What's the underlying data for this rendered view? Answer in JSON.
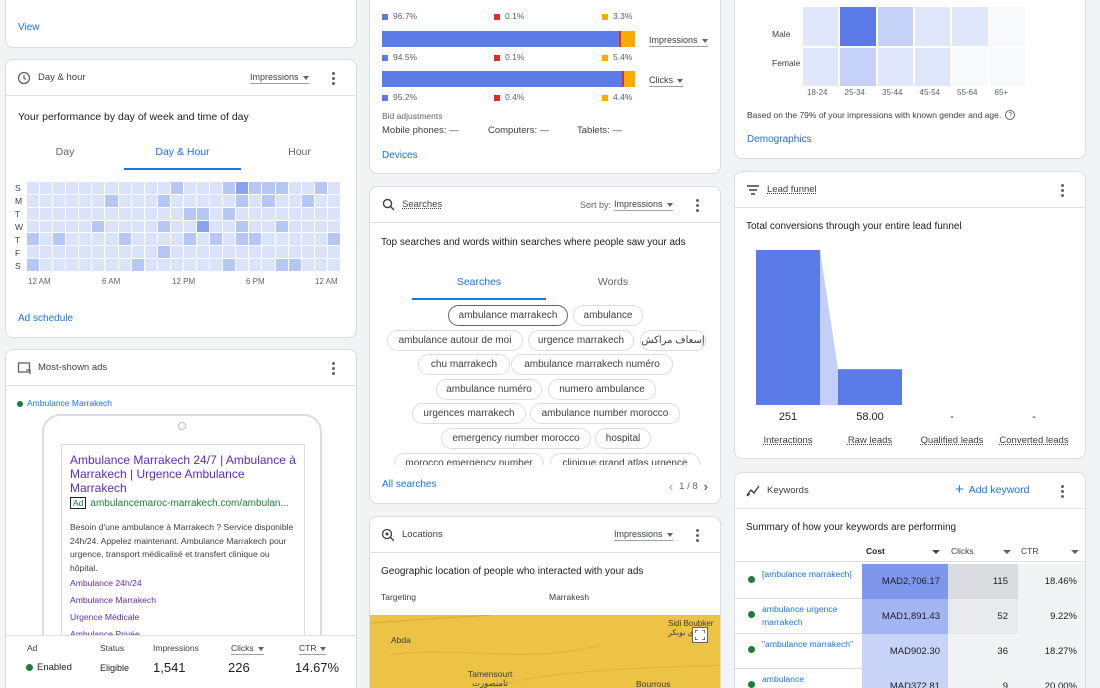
{
  "top_left": {
    "view_link": "View"
  },
  "day_hour": {
    "title": "Day & hour",
    "metric": "Impressions",
    "heading": "Your performance by day of week and time of day",
    "tabs": [
      "Day",
      "Day & Hour",
      "Hour"
    ],
    "days": [
      "S",
      "M",
      "T",
      "W",
      "T",
      "F",
      "S"
    ],
    "x_ticks": [
      "12 AM",
      "6 AM",
      "12 PM",
      "6 PM",
      "12 AM"
    ],
    "link": "Ad schedule",
    "heat": [
      [
        1,
        1,
        1,
        1,
        1,
        1,
        1,
        1,
        1,
        1,
        1,
        2,
        1,
        1,
        1,
        2,
        3,
        2,
        2,
        2,
        1,
        1,
        2,
        1
      ],
      [
        1,
        1,
        1,
        1,
        1,
        1,
        2,
        1,
        1,
        1,
        2,
        1,
        1,
        1,
        1,
        1,
        2,
        1,
        2,
        1,
        1,
        2,
        1,
        1
      ],
      [
        1,
        1,
        1,
        1,
        1,
        1,
        1,
        1,
        1,
        1,
        1,
        1,
        2,
        2,
        1,
        2,
        1,
        1,
        1,
        1,
        1,
        1,
        1,
        1
      ],
      [
        1,
        1,
        1,
        1,
        1,
        2,
        1,
        1,
        1,
        1,
        2,
        1,
        1,
        3,
        1,
        1,
        2,
        1,
        1,
        2,
        1,
        1,
        1,
        1
      ],
      [
        2,
        1,
        2,
        1,
        1,
        1,
        1,
        2,
        1,
        1,
        1,
        1,
        2,
        1,
        2,
        1,
        2,
        2,
        1,
        1,
        1,
        1,
        1,
        2
      ],
      [
        1,
        1,
        1,
        1,
        1,
        1,
        1,
        1,
        1,
        1,
        2,
        1,
        1,
        1,
        1,
        1,
        1,
        1,
        1,
        1,
        1,
        1,
        1,
        1
      ],
      [
        2,
        1,
        1,
        1,
        1,
        1,
        1,
        1,
        2,
        1,
        1,
        1,
        1,
        1,
        1,
        2,
        1,
        1,
        1,
        2,
        2,
        1,
        1,
        1
      ]
    ]
  },
  "most_shown": {
    "title": "Most-shown ads",
    "campaign": "Ambulance Marrakech",
    "ad_headline": "Ambulance Marrakech 24/7 | Ambulance à Marrakech | Urgence Ambulance Marrakech",
    "ad_badge": "Ad",
    "ad_url": "ambulancemaroc-marrakech.com/ambulan...",
    "ad_desc": "Besoin d'une ambulance à Marrakech ? Service disponible 24h/24. Appelez maintenant. Ambulance Marrakech pour urgence, transport médicalisé et transfert clinique ou hôpital.",
    "sitelinks": [
      "Ambulance 24h/24",
      "Ambulance Marrakech",
      "Urgence Médicale",
      "Ambulance Privée"
    ],
    "stats_headers": [
      "Ad",
      "Status",
      "Impressions",
      "Clicks",
      "CTR"
    ],
    "stats_values": [
      "Enabled",
      "Eligible",
      "1,541",
      "226",
      "14.67%"
    ]
  },
  "devices": {
    "rows": [
      {
        "pcts": [
          "96.7%",
          "0.1%",
          "3.3%"
        ],
        "split": [
          96.7,
          0.1,
          3.3
        ],
        "show_bar": false
      },
      {
        "pcts": [
          "94.5%",
          "0.1%",
          "5.4%"
        ],
        "split": [
          94.5,
          0.1,
          5.4
        ],
        "show_bar": true,
        "metric": "Impressions"
      },
      {
        "pcts": [
          "95.2%",
          "0.4%",
          "4.4%"
        ],
        "split": [
          95.2,
          0.4,
          4.4
        ],
        "show_bar": true,
        "metric": "Clicks"
      }
    ],
    "bid_label": "Bid adjustments",
    "bid_mobile": "Mobile phones: —",
    "bid_computers": "Computers: —",
    "bid_tablets": "Tablets: —",
    "link": "Devices",
    "colors": {
      "mobile": "#5b7ce8",
      "computers": "#d93025",
      "tablets": "#f9ab00"
    }
  },
  "searches": {
    "title": "Searches",
    "sort_label": "Sort by:",
    "sort_value": "Impressions",
    "heading": "Top searches and words within searches where people saw your ads",
    "tabs": [
      "Searches",
      "Words"
    ],
    "chips": [
      "ambulance marrakech",
      "ambulance",
      "ambulance autour de moi",
      "urgence marrakech",
      "إسعاف مراكش",
      "chu marrakech",
      "ambulance marrakech numéro",
      "ambulance numéro",
      "numero ambulance",
      "urgences marrakech",
      "ambulance number morocco",
      "emergency number morocco",
      "hospital",
      "morocco emergency number",
      "clinique grand atlas urgence"
    ],
    "link": "All searches",
    "pager": "1 / 8"
  },
  "locations": {
    "title": "Locations",
    "metric": "Impressions",
    "heading": "Geographic location of people who interacted with your ads",
    "targeting_label": "Targeting",
    "targeting_value": "Marrakesh",
    "map_labels": [
      "Abda",
      "Sidi Boubker",
      "سيدي بوبكر",
      "Tamensourt",
      "تامنصورت",
      "Bourrous"
    ]
  },
  "demographics": {
    "rows": [
      "Male",
      "Female"
    ],
    "ages": [
      "18-24",
      "25-34",
      "35-44",
      "45-54",
      "55-64",
      "65+"
    ],
    "heat": [
      [
        1,
        4,
        2,
        1,
        1,
        0
      ],
      [
        1,
        2,
        1,
        1,
        0,
        0
      ]
    ],
    "note": "Based on the 79% of your impressions with known gender and age.",
    "link": "Demographics"
  },
  "lead_funnel": {
    "title": "Lead funnel",
    "heading": "Total conversions through your entire lead funnel",
    "chart_data": {
      "type": "bar",
      "categories": [
        "Interactions",
        "Raw leads",
        "Qualified leads",
        "Converted leads"
      ],
      "values": [
        251,
        58,
        null,
        null
      ],
      "labels": [
        "251",
        "58.00",
        "-",
        "-"
      ]
    }
  },
  "keywords": {
    "title": "Keywords",
    "add_label": "Add keyword",
    "heading": "Summary of how your keywords are performing",
    "columns": [
      "Cost",
      "Clicks",
      "CTR"
    ],
    "rows": [
      {
        "keyword": "[ambulance marrakech]",
        "cost": "MAD2,706.17",
        "clicks": "115",
        "ctr": "18.46%"
      },
      {
        "keyword": "ambulance urgence marrakech",
        "cost": "MAD1,891.43",
        "clicks": "52",
        "ctr": "9.22%"
      },
      {
        "keyword": "\"ambulance marrakech\"",
        "cost": "MAD902.30",
        "clicks": "36",
        "ctr": "18.27%"
      },
      {
        "keyword": "ambulance",
        "cost": "MAD372.81",
        "clicks": "9",
        "ctr": "20.00%"
      }
    ]
  }
}
